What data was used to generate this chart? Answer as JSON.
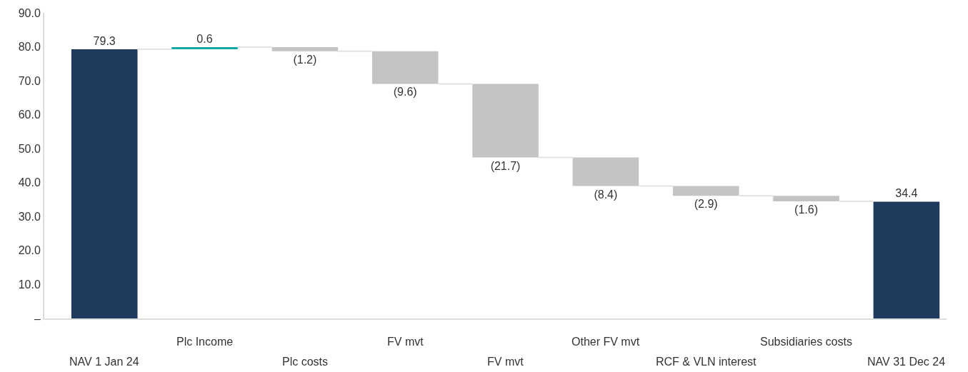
{
  "chart_data": {
    "type": "bar",
    "categories": [
      "NAV 1 Jan 24",
      "Plc Income",
      "Plc costs",
      "FV mvt",
      "FV mvt",
      "Other FV mvt",
      "RCF & VLN interest",
      "Subsidiaries costs",
      "NAV 31 Dec 24"
    ],
    "values": [
      79.3,
      0.6,
      -1.2,
      -9.6,
      -21.7,
      -8.4,
      -2.9,
      -1.6,
      34.4
    ],
    "base": [
      0,
      79.3,
      79.9,
      78.7,
      69.1,
      47.4,
      39.0,
      36.1,
      0
    ],
    "colors": [
      "#1e3a5c",
      "#14a8a8",
      "#c4c4c4",
      "#c4c4c4",
      "#c4c4c4",
      "#c4c4c4",
      "#c4c4c4",
      "#c4c4c4",
      "#1e3a5c"
    ],
    "value_labels": [
      "79.3",
      "0.6",
      "(1.2)",
      "(9.6)",
      "(21.7)",
      "(8.4)",
      "(2.9)",
      "(1.6)",
      "34.4"
    ],
    "ylim": [
      0,
      90
    ],
    "yticks": [
      {
        "value": 0,
        "label": "–"
      },
      {
        "value": 10,
        "label": "10.0"
      },
      {
        "value": 20,
        "label": "20.0"
      },
      {
        "value": 30,
        "label": "30.0"
      },
      {
        "value": 40,
        "label": "40.0"
      },
      {
        "value": 50,
        "label": "50.0"
      },
      {
        "value": 60,
        "label": "60.0"
      },
      {
        "value": 70,
        "label": "70.0"
      },
      {
        "value": 80,
        "label": "80.0"
      },
      {
        "value": 90,
        "label": "90.0"
      }
    ],
    "grid": false
  }
}
